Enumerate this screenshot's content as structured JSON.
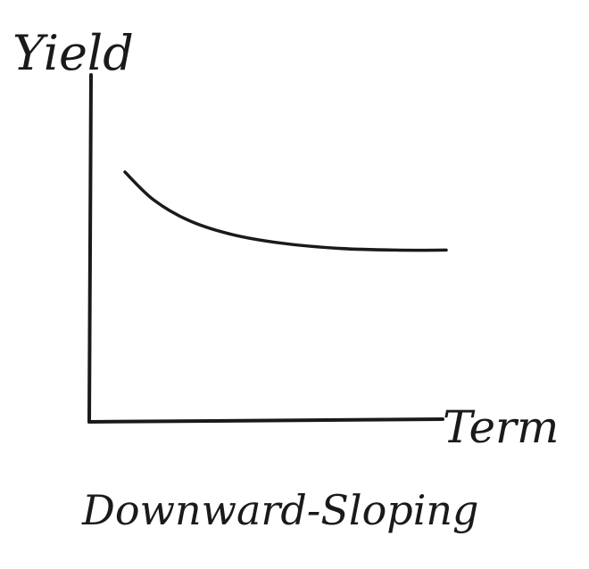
{
  "chart_data": {
    "type": "line",
    "title": "",
    "caption": "Downward-Sloping",
    "xlabel": "Term",
    "ylabel": "Yield",
    "grid": false,
    "xlim": [
      0,
      10
    ],
    "ylim": [
      0,
      10
    ],
    "series": [
      {
        "x": [
          1.0,
          1.8,
          2.8,
          4.0,
          5.4,
          7.0,
          8.6,
          10.0
        ],
        "y": [
          7.2,
          6.4,
          5.8,
          5.4,
          5.15,
          5.0,
          4.95,
          4.95
        ]
      }
    ]
  },
  "colors": {
    "ink": "#1a1a1a",
    "paper": "#ffffff"
  }
}
